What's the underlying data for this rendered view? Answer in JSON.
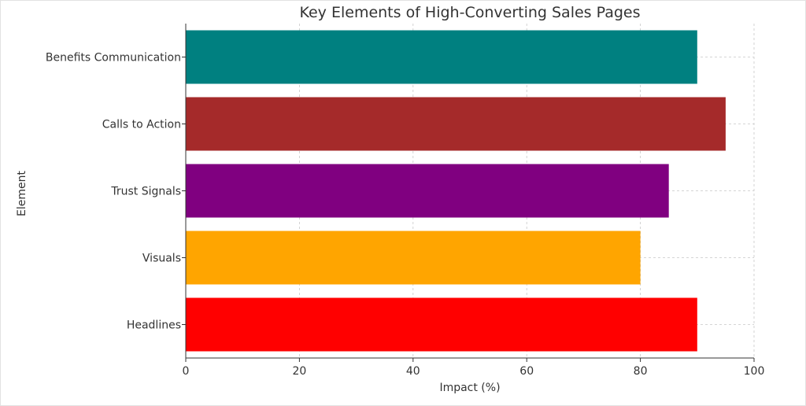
{
  "chart_data": {
    "type": "bar",
    "orientation": "horizontal",
    "title": "Key Elements of High-Converting Sales Pages",
    "xlabel": "Impact (%)",
    "ylabel": "Element",
    "categories": [
      "Headlines",
      "Visuals",
      "Trust Signals",
      "Calls to Action",
      "Benefits Communication"
    ],
    "values": [
      90,
      80,
      85,
      95,
      90
    ],
    "colors": [
      "#ff0000",
      "#ffa500",
      "#800080",
      "#a52a2a",
      "#008080"
    ],
    "xlim": [
      0,
      100
    ],
    "xticks": [
      "0",
      "20",
      "40",
      "60",
      "80",
      "100"
    ],
    "grid": true
  }
}
